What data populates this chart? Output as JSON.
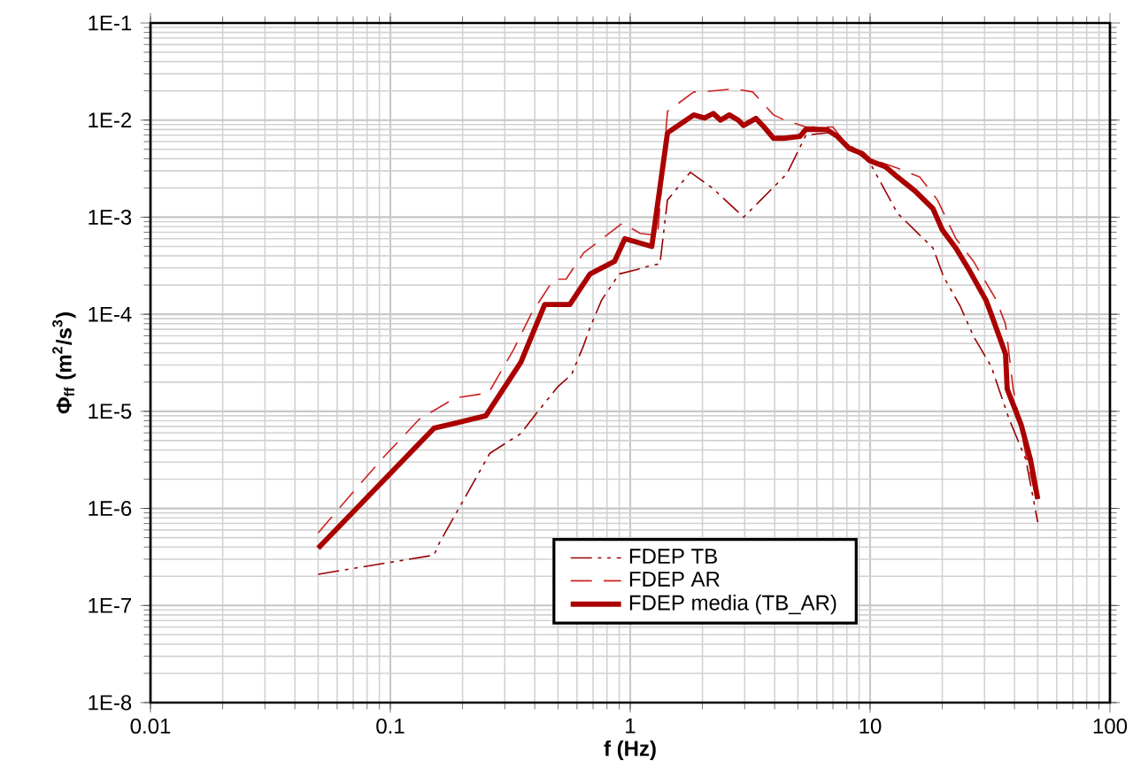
{
  "chart_data": {
    "type": "line",
    "xlabel": "f (Hz)",
    "ylabel": "Φ$_{ff}$ (m$^{2}$/s$^{3}$)",
    "log": "xy",
    "grid": true,
    "legend": "bottom",
    "marker": "none",
    "xlim": [
      0.01,
      100
    ],
    "xticks": [
      0.01,
      0.1,
      1,
      10,
      100
    ],
    "ylim": [
      1e-08,
      0.1
    ],
    "yticks": [
      {
        "value": 1e-08,
        "label": "1E-8"
      },
      {
        "value": 1e-07,
        "label": "1E-7"
      },
      {
        "value": 1e-06,
        "label": "1E-6"
      },
      {
        "value": 1e-05,
        "label": "1E-5"
      },
      {
        "value": 0.0001,
        "label": "1E-4"
      },
      {
        "value": 0.001,
        "label": "1E-3"
      },
      {
        "value": 0.01,
        "label": "1E-2"
      },
      {
        "value": 0.1,
        "label": "1E-1"
      }
    ],
    "series": [
      {
        "name": "FDEP TB",
        "color": "#990000",
        "line_style": "dashdot",
        "x": [
          0.05,
          0.152,
          0.16,
          0.26,
          0.35,
          0.41,
          0.5,
          0.57,
          0.64,
          0.68,
          0.76,
          0.9,
          1.07,
          1.23,
          1.33,
          1.43,
          1.78,
          2.2,
          2.97,
          3.5,
          4.5,
          5.4,
          7.0,
          10,
          13,
          18.3,
          20.3,
          23.8,
          27,
          32,
          38,
          44.6,
          50
        ],
        "values": [
          2.1e-07,
          3.3e-07,
          4.4e-07,
          3.7e-06,
          5.9e-06,
          9.8e-06,
          1.8e-05,
          2.4e-05,
          4.8e-05,
          7.3e-05,
          0.00014,
          0.00026,
          0.00029,
          0.00032,
          0.00033,
          0.0015,
          0.0029,
          0.002,
          0.001,
          0.0015,
          0.0028,
          0.007,
          0.0075,
          0.0036,
          0.0011,
          0.00048,
          0.00024,
          0.00012,
          5.9e-05,
          2.9e-05,
          8.3e-06,
          3.2e-06,
          7.2e-07
        ]
      },
      {
        "name": "FDEP AR",
        "color": "#cc2222",
        "line_style": "dashed",
        "x": [
          0.05,
          0.068,
          0.094,
          0.132,
          0.186,
          0.257,
          0.326,
          0.386,
          0.48,
          0.54,
          0.64,
          0.93,
          1.1,
          1.3,
          1.43,
          1.84,
          2.0,
          2.72,
          3.24,
          3.96,
          4.4,
          5.4,
          7.0,
          7.8,
          10,
          13,
          16.1,
          19.1,
          22.8,
          27,
          33.6,
          36.7,
          39.5,
          44.6,
          49
        ],
        "values": [
          5.6e-07,
          1.36e-06,
          3.4e-06,
          8.3e-06,
          1.37e-05,
          1.55e-05,
          4.3e-05,
          0.0001,
          0.00023,
          0.00023,
          0.00043,
          0.00087,
          0.00068,
          0.00065,
          0.0123,
          0.0195,
          0.0195,
          0.021,
          0.0195,
          0.0113,
          0.01,
          0.0085,
          0.0085,
          0.006,
          0.004,
          0.0032,
          0.0026,
          0.0015,
          0.0006,
          0.00035,
          0.00014,
          7.9e-05,
          1.7e-05,
          3.6e-06,
          1.35e-06
        ]
      },
      {
        "name": "FDEP media (TB_AR)",
        "color": "#aa0000",
        "line_style": "solid",
        "x": [
          0.05,
          0.152,
          0.25,
          0.35,
          0.44,
          0.56,
          0.68,
          0.86,
          0.95,
          1.23,
          1.43,
          1.84,
          2.04,
          2.22,
          2.38,
          2.59,
          2.82,
          2.97,
          3.34,
          3.63,
          3.96,
          4.37,
          5.1,
          5.4,
          6.6,
          7.3,
          8.2,
          9.3,
          10,
          11.6,
          13,
          15.4,
          18.3,
          20,
          22.8,
          26,
          30.4,
          32,
          36.7,
          37.3,
          42.6,
          46.6,
          50
        ],
        "values": [
          3.9e-07,
          6.7e-06,
          9e-06,
          3.2e-05,
          0.000126,
          0.000126,
          0.00026,
          0.00035,
          0.0006,
          0.0005,
          0.0074,
          0.0113,
          0.0105,
          0.0117,
          0.01,
          0.0113,
          0.01,
          0.0088,
          0.0104,
          0.0084,
          0.0065,
          0.0065,
          0.0068,
          0.00805,
          0.008,
          0.0068,
          0.0051,
          0.0045,
          0.0038,
          0.0033,
          0.0026,
          0.00186,
          0.00122,
          0.00074,
          0.00048,
          0.00028,
          0.00014,
          0.0001,
          3.9e-05,
          1.7e-05,
          7.3e-06,
          3.2e-06,
          1.25e-06
        ]
      }
    ]
  }
}
